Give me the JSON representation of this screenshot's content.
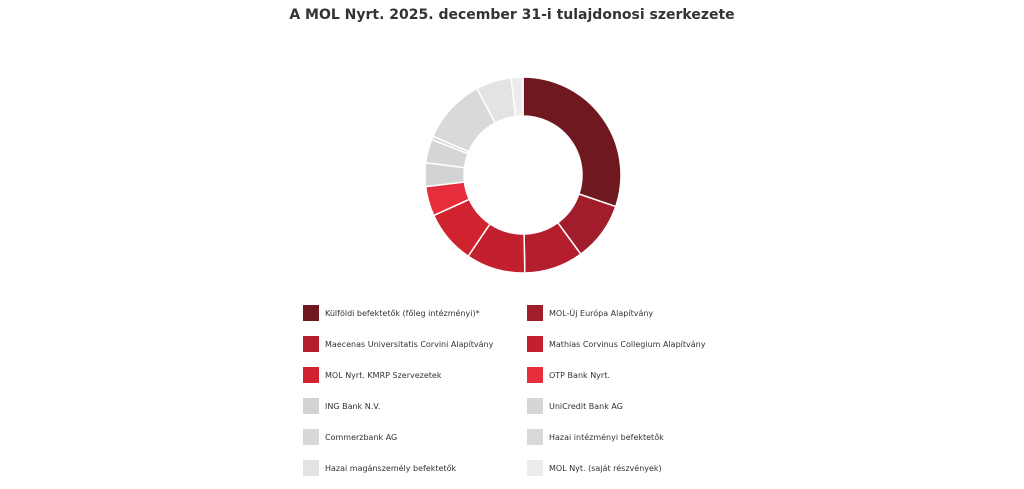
{
  "chart_data": {
    "type": "pie",
    "style": "donut",
    "title": "A MOL Nyrt. 2025. december 31-i tulajdonosi szerkezete",
    "legend_position": "bottom",
    "slices": [
      {
        "label": "Külföldi befektetők (főleg intézményi)*",
        "value": 31.0,
        "color": "#701820"
      },
      {
        "label": "MOL-Új Európa Alapítvány",
        "value": 10.0,
        "color": "#a11d2b"
      },
      {
        "label": "Maecenas Universitatis Corvini Alapítvány",
        "value": 10.0,
        "color": "#b51f2d"
      },
      {
        "label": "Mathias Corvinus Collegium Alapítvány",
        "value": 10.0,
        "color": "#c2202f"
      },
      {
        "label": "MOL Nyrt. KMRP Szervezetek",
        "value": 9.0,
        "color": "#d0222f"
      },
      {
        "label": "OTP Bank Nyrt.",
        "value": 5.0,
        "color": "#e52d3c"
      },
      {
        "label": "ING Bank N.V.",
        "value": 4.0,
        "color": "#d3d3d3"
      },
      {
        "label": "UniCredit Bank AG",
        "value": 4.0,
        "color": "#d6d6d6"
      },
      {
        "label": "Commerzbank AG",
        "value": 0.6,
        "color": "#d8d8d8"
      },
      {
        "label": "Hazai intézményi befektetők",
        "value": 11.0,
        "color": "#d9d9d9"
      },
      {
        "label": "Hazai magánszemély befektetők",
        "value": 6.0,
        "color": "#e3e3e3"
      },
      {
        "label": "MOL Nyt. (saját részvények)",
        "value": 2.0,
        "color": "#ececec"
      }
    ]
  }
}
